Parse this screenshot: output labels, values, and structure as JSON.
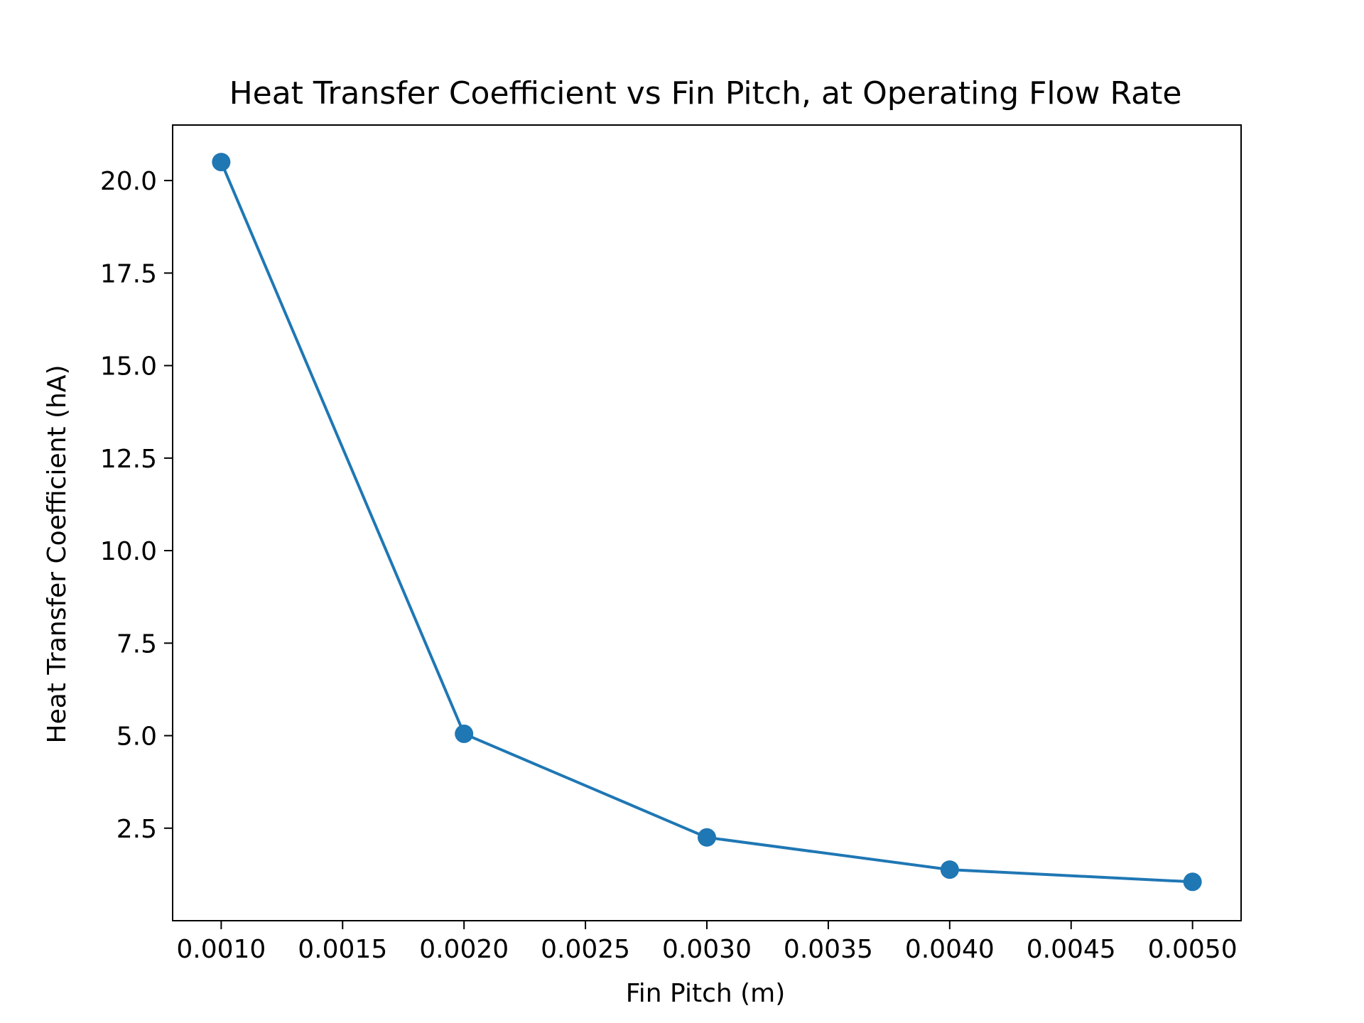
{
  "chart_data": {
    "type": "line",
    "title": "Heat Transfer Coefficient vs Fin Pitch, at Operating Flow Rate",
    "xlabel": "Fin Pitch (m)",
    "ylabel": "Heat Transfer Coefficient (hA)",
    "xlim": [
      0.0008,
      0.0052
    ],
    "ylim": [
      0.0,
      21.5
    ],
    "x_ticks": [
      0.001,
      0.0015,
      0.002,
      0.0025,
      0.003,
      0.0035,
      0.004,
      0.0045,
      0.005
    ],
    "x_tick_labels": [
      "0.0010",
      "0.0015",
      "0.0020",
      "0.0025",
      "0.0030",
      "0.0035",
      "0.0040",
      "0.0045",
      "0.0050"
    ],
    "y_ticks": [
      2.5,
      5.0,
      7.5,
      10.0,
      12.5,
      15.0,
      17.5,
      20.0
    ],
    "y_tick_labels": [
      "2.5",
      "5.0",
      "7.5",
      "10.0",
      "12.5",
      "15.0",
      "17.5",
      "20.0"
    ],
    "grid": false,
    "series": [
      {
        "x": [
          0.001,
          0.002,
          0.003,
          0.004,
          0.005
        ],
        "y": [
          20.5,
          5.05,
          2.25,
          1.38,
          1.05
        ],
        "color": "#1f77b4",
        "marker": "circle"
      }
    ]
  }
}
